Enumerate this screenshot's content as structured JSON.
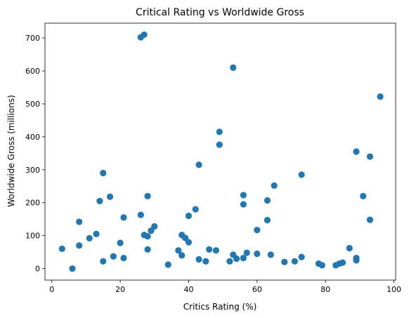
{
  "chart_data": {
    "type": "scatter",
    "title": "Critical Rating vs Worldwide Gross",
    "xlabel": "Critics Rating (%)",
    "ylabel": "Worldwide Gross (millions)",
    "xlim": [
      -2,
      100.5
    ],
    "ylim": [
      -35,
      745
    ],
    "xticks": [
      0,
      20,
      40,
      60,
      80,
      100
    ],
    "yticks": [
      0,
      100,
      200,
      300,
      400,
      500,
      600,
      700
    ],
    "grid": false,
    "marker_color": "#1f77b4",
    "points": [
      {
        "x": 3,
        "y": 60
      },
      {
        "x": 6,
        "y": 0
      },
      {
        "x": 8,
        "y": 70
      },
      {
        "x": 8,
        "y": 142
      },
      {
        "x": 11,
        "y": 92
      },
      {
        "x": 13,
        "y": 105
      },
      {
        "x": 14,
        "y": 205
      },
      {
        "x": 15,
        "y": 290
      },
      {
        "x": 15,
        "y": 22
      },
      {
        "x": 17,
        "y": 218
      },
      {
        "x": 18,
        "y": 37
      },
      {
        "x": 20,
        "y": 78
      },
      {
        "x": 21,
        "y": 155
      },
      {
        "x": 21,
        "y": 32
      },
      {
        "x": 26,
        "y": 702
      },
      {
        "x": 27,
        "y": 710
      },
      {
        "x": 26,
        "y": 163
      },
      {
        "x": 27,
        "y": 102
      },
      {
        "x": 28,
        "y": 98
      },
      {
        "x": 28,
        "y": 220
      },
      {
        "x": 28,
        "y": 58
      },
      {
        "x": 29,
        "y": 115
      },
      {
        "x": 30,
        "y": 128
      },
      {
        "x": 34,
        "y": 12
      },
      {
        "x": 37,
        "y": 55
      },
      {
        "x": 38,
        "y": 102
      },
      {
        "x": 38,
        "y": 40
      },
      {
        "x": 39,
        "y": 93
      },
      {
        "x": 40,
        "y": 80
      },
      {
        "x": 40,
        "y": 160
      },
      {
        "x": 42,
        "y": 180
      },
      {
        "x": 43,
        "y": 315
      },
      {
        "x": 43,
        "y": 28
      },
      {
        "x": 45,
        "y": 22
      },
      {
        "x": 46,
        "y": 58
      },
      {
        "x": 48,
        "y": 55
      },
      {
        "x": 49,
        "y": 415
      },
      {
        "x": 49,
        "y": 376
      },
      {
        "x": 52,
        "y": 22
      },
      {
        "x": 53,
        "y": 610
      },
      {
        "x": 53,
        "y": 42
      },
      {
        "x": 54,
        "y": 30
      },
      {
        "x": 56,
        "y": 32
      },
      {
        "x": 56,
        "y": 223
      },
      {
        "x": 56,
        "y": 195
      },
      {
        "x": 57,
        "y": 48
      },
      {
        "x": 60,
        "y": 117
      },
      {
        "x": 60,
        "y": 45
      },
      {
        "x": 63,
        "y": 207
      },
      {
        "x": 63,
        "y": 147
      },
      {
        "x": 64,
        "y": 42
      },
      {
        "x": 65,
        "y": 252
      },
      {
        "x": 68,
        "y": 20
      },
      {
        "x": 71,
        "y": 22
      },
      {
        "x": 73,
        "y": 285
      },
      {
        "x": 73,
        "y": 35
      },
      {
        "x": 78,
        "y": 15
      },
      {
        "x": 79,
        "y": 10
      },
      {
        "x": 83,
        "y": 10
      },
      {
        "x": 84,
        "y": 15
      },
      {
        "x": 85,
        "y": 18
      },
      {
        "x": 87,
        "y": 62
      },
      {
        "x": 89,
        "y": 355
      },
      {
        "x": 89,
        "y": 32
      },
      {
        "x": 89,
        "y": 25
      },
      {
        "x": 91,
        "y": 220
      },
      {
        "x": 93,
        "y": 340
      },
      {
        "x": 93,
        "y": 148
      },
      {
        "x": 96,
        "y": 522
      }
    ]
  }
}
